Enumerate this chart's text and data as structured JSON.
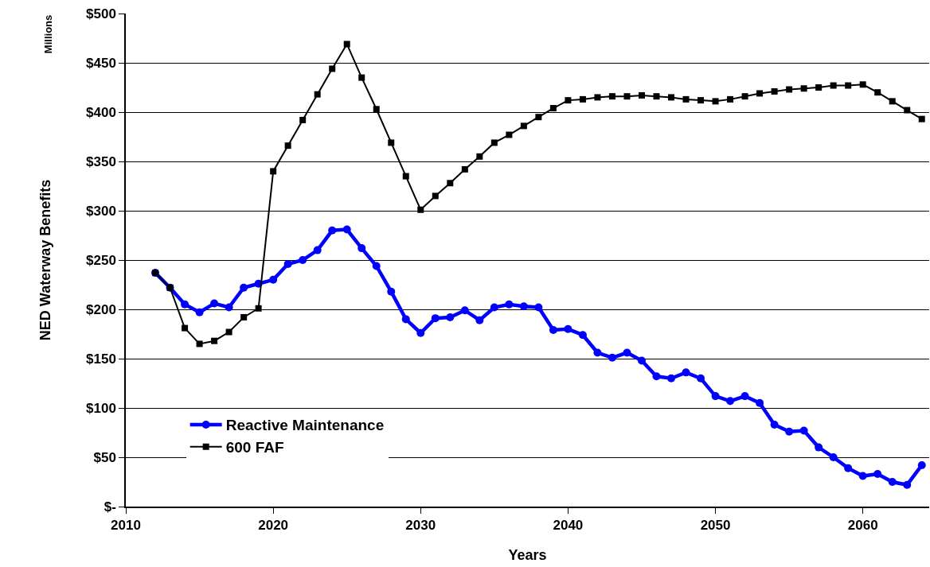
{
  "chart_data": {
    "type": "line",
    "xlabel": "Years",
    "ylabel": "NED Waterway Benefits",
    "annotations": [
      "Millions"
    ],
    "x": [
      2012,
      2013,
      2014,
      2015,
      2016,
      2017,
      2018,
      2019,
      2020,
      2021,
      2022,
      2023,
      2024,
      2025,
      2026,
      2027,
      2028,
      2029,
      2030,
      2031,
      2032,
      2033,
      2034,
      2035,
      2036,
      2037,
      2038,
      2039,
      2040,
      2041,
      2042,
      2043,
      2044,
      2045,
      2046,
      2047,
      2048,
      2049,
      2050,
      2051,
      2052,
      2053,
      2054,
      2055,
      2056,
      2057,
      2058,
      2059,
      2060,
      2061,
      2062,
      2063,
      2064
    ],
    "series": [
      {
        "name": "Reactive Maintenance",
        "color": "#0000ff",
        "marker": "circle",
        "values": [
          237,
          222,
          205,
          197,
          206,
          202,
          222,
          226,
          230,
          246,
          250,
          260,
          280,
          281,
          262,
          244,
          218,
          190,
          176,
          191,
          192,
          199,
          189,
          202,
          205,
          203,
          202,
          179,
          180,
          174,
          156,
          151,
          156,
          148,
          132,
          130,
          136,
          130,
          112,
          107,
          112,
          105,
          83,
          76,
          77,
          60,
          50,
          39,
          31,
          33,
          25,
          22,
          42
        ]
      },
      {
        "name": "600 FAF",
        "color": "#000000",
        "marker": "square",
        "values": [
          237,
          222,
          181,
          165,
          168,
          177,
          192,
          201,
          340,
          366,
          392,
          418,
          444,
          469,
          435,
          403,
          369,
          335,
          301,
          315,
          328,
          342,
          355,
          369,
          377,
          386,
          395,
          404,
          412,
          413,
          415,
          416,
          416,
          417,
          416,
          415,
          413,
          412,
          411,
          413,
          416,
          419,
          421,
          423,
          424,
          425,
          427,
          427,
          428,
          420,
          411,
          402,
          393
        ]
      }
    ],
    "xlim": [
      2010,
      2064.5
    ],
    "xticks": [
      2010,
      2020,
      2030,
      2040,
      2050,
      2060
    ],
    "ylim": [
      0,
      500
    ],
    "yticks": [
      {
        "value": 0,
        "label": "$-"
      },
      {
        "value": 50,
        "label": "$50"
      },
      {
        "value": 100,
        "label": "$100"
      },
      {
        "value": 150,
        "label": "$150"
      },
      {
        "value": 200,
        "label": "$200"
      },
      {
        "value": 250,
        "label": "$250"
      },
      {
        "value": 300,
        "label": "$300"
      },
      {
        "value": 350,
        "label": "$350"
      },
      {
        "value": 400,
        "label": "$400"
      },
      {
        "value": 450,
        "label": "$450"
      },
      {
        "value": 500,
        "label": "$500"
      }
    ],
    "grid": "y",
    "legend": "bottom left"
  }
}
